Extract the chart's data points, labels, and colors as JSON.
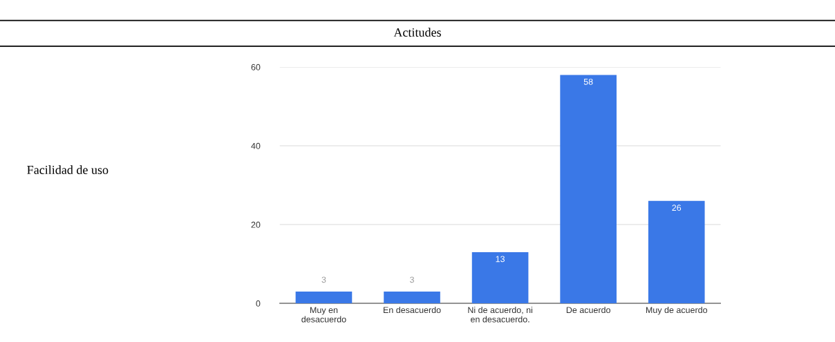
{
  "chart_data": {
    "type": "bar",
    "title": "Actitudes",
    "annotations": [
      "Facilidad de uso"
    ],
    "categories": [
      "Muy en\ndesacuerdo",
      "En desacuerdo",
      "Ni de acuerdo, ni\nen desacuerdo.",
      "De acuerdo",
      "Muy de acuerdo"
    ],
    "values": [
      3,
      3,
      13,
      58,
      26
    ],
    "color": "#3a78e7",
    "ylim": [
      0,
      60
    ],
    "yticks": [
      0,
      20,
      40,
      60
    ],
    "grid": "y",
    "data_labels": true
  }
}
